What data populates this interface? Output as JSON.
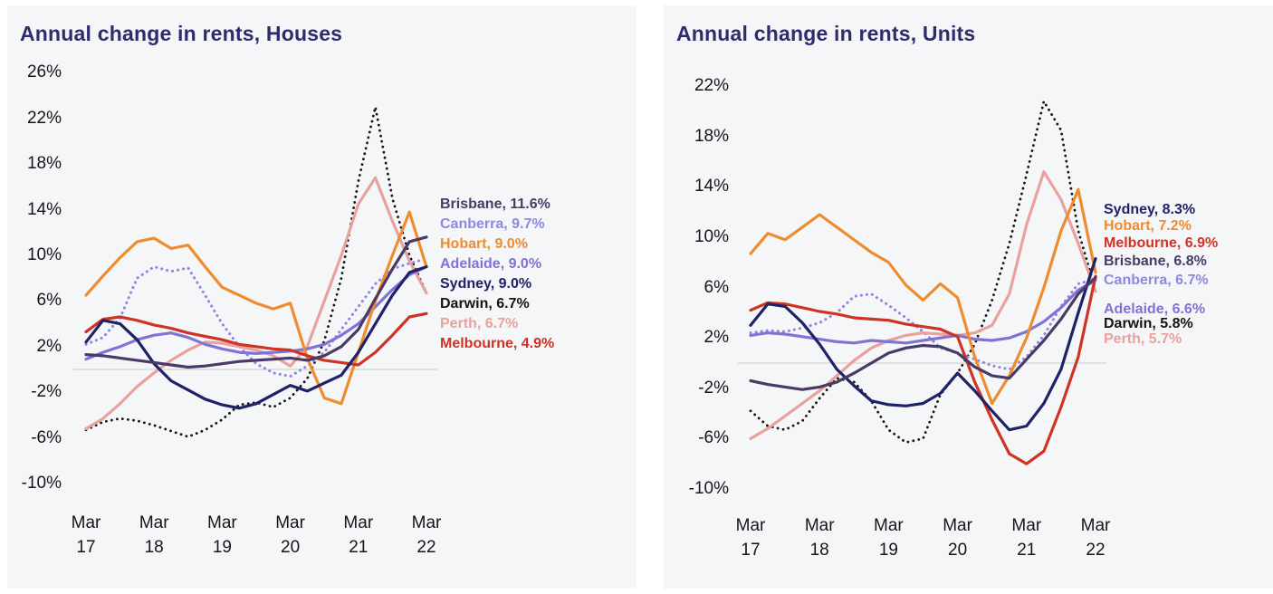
{
  "page": {
    "background_color": "#ffffff",
    "panel_background_color": "#f5f6f8",
    "title_color": "#312b6d",
    "axis_text_color": "#16161a",
    "zero_line_color": "#d8d8d8"
  },
  "city_colors": {
    "Sydney": "#1e2266",
    "Melbourne": "#ce3323",
    "Brisbane": "#4a3a66",
    "Adelaide": "#8173d6",
    "Canberra": "#9187e2",
    "Hobart": "#ee8c2e",
    "Perth": "#e9a19e",
    "Darwin": "#141414"
  },
  "chart_data": [
    {
      "type": "line",
      "title": "Annual change in rents, Houses",
      "ylabel": "",
      "xlabel": "",
      "y_axis": {
        "min": -10,
        "max": 26,
        "step": 4,
        "tick_suffix": "%",
        "ticks": [
          "26%",
          "22%",
          "18%",
          "14%",
          "10%",
          "6%",
          "2%",
          "-2%",
          "-6%",
          "-10%"
        ]
      },
      "x_ticks": [
        {
          "month": "Mar",
          "year": "17"
        },
        {
          "month": "Mar",
          "year": "18"
        },
        {
          "month": "Mar",
          "year": "19"
        },
        {
          "month": "Mar",
          "year": "20"
        },
        {
          "month": "Mar",
          "year": "21"
        },
        {
          "month": "Mar",
          "year": "22"
        }
      ],
      "x_quarters": [
        "Mar 17",
        "Jun 17",
        "Sep 17",
        "Dec 17",
        "Mar 18",
        "Jun 18",
        "Sep 18",
        "Dec 18",
        "Mar 19",
        "Jun 19",
        "Sep 19",
        "Dec 19",
        "Mar 20",
        "Jun 20",
        "Sep 20",
        "Dec 20",
        "Mar 21",
        "Jun 21",
        "Sep 21",
        "Dec 21",
        "Mar 22"
      ],
      "grid": false,
      "zero_line": true,
      "legend_position": "right-of-plot",
      "series": [
        {
          "name": "Brisbane",
          "label": "Brisbane, 11.6%",
          "final_value": 11.6,
          "style": "solid",
          "values": [
            1.3,
            1.2,
            1.0,
            0.8,
            0.6,
            0.4,
            0.2,
            0.3,
            0.5,
            0.7,
            0.8,
            0.9,
            1.0,
            0.8,
            1.2,
            2.0,
            3.5,
            6.2,
            8.8,
            11.2,
            11.6
          ]
        },
        {
          "name": "Canberra",
          "label": "Canberra, 9.7%",
          "final_value": 9.7,
          "style": "dotted",
          "values": [
            2.2,
            2.8,
            4.5,
            8.0,
            9.0,
            8.6,
            8.9,
            6.5,
            4.0,
            2.0,
            0.5,
            -0.3,
            -0.6,
            0.3,
            1.5,
            3.5,
            5.5,
            7.5,
            8.8,
            9.3,
            9.7
          ]
        },
        {
          "name": "Hobart",
          "label": "Hobart, 9.0%",
          "final_value": 9.0,
          "style": "solid",
          "values": [
            6.5,
            8.2,
            9.8,
            11.2,
            11.5,
            10.6,
            10.9,
            9.0,
            7.2,
            6.5,
            5.8,
            5.3,
            5.8,
            1.0,
            -2.5,
            -3.0,
            1.5,
            6.0,
            10.0,
            13.8,
            9.0
          ]
        },
        {
          "name": "Adelaide",
          "label": "Adelaide, 9.0%",
          "final_value": 9.0,
          "style": "solid",
          "values": [
            0.9,
            1.5,
            2.0,
            2.6,
            3.0,
            3.2,
            2.8,
            2.2,
            1.8,
            1.5,
            1.4,
            1.5,
            1.6,
            1.8,
            2.2,
            3.0,
            4.0,
            5.5,
            7.0,
            8.3,
            9.0
          ]
        },
        {
          "name": "Sydney",
          "label": "Sydney, 9.0%",
          "final_value": 9.0,
          "style": "solid",
          "values": [
            2.4,
            4.3,
            4.0,
            2.6,
            0.5,
            -1.0,
            -1.8,
            -2.6,
            -3.1,
            -3.4,
            -3.0,
            -2.2,
            -1.4,
            -1.9,
            -1.2,
            -0.5,
            1.5,
            4.0,
            6.5,
            8.5,
            9.0
          ]
        },
        {
          "name": "Darwin",
          "label": "Darwin, 6.7%",
          "final_value": 6.7,
          "style": "dotted",
          "values": [
            -5.3,
            -4.6,
            -4.3,
            -4.5,
            -4.9,
            -5.4,
            -5.9,
            -5.3,
            -4.4,
            -3.1,
            -2.9,
            -3.3,
            -2.5,
            -0.8,
            2.5,
            8.0,
            16.5,
            23.0,
            15.0,
            10.0,
            6.7
          ]
        },
        {
          "name": "Perth",
          "label": "Perth, 6.7%",
          "final_value": 6.7,
          "style": "solid",
          "values": [
            -5.2,
            -4.3,
            -3.0,
            -1.5,
            -0.3,
            0.8,
            1.7,
            2.4,
            2.3,
            2.0,
            1.7,
            1.2,
            0.3,
            2.0,
            6.0,
            10.0,
            14.5,
            16.8,
            13.0,
            9.5,
            6.7
          ]
        },
        {
          "name": "Melbourne",
          "label": "Melbourne, 4.9%",
          "final_value": 4.9,
          "style": "solid",
          "values": [
            3.3,
            4.4,
            4.6,
            4.3,
            3.9,
            3.6,
            3.2,
            2.9,
            2.6,
            2.2,
            2.0,
            1.8,
            1.7,
            1.2,
            0.8,
            0.6,
            0.4,
            1.5,
            3.0,
            4.6,
            4.9
          ]
        }
      ]
    },
    {
      "type": "line",
      "title": "Annual change in rents, Units",
      "ylabel": "",
      "xlabel": "",
      "y_axis": {
        "min": -10,
        "max": 22,
        "step": 4,
        "tick_suffix": "%",
        "ticks": [
          "22%",
          "18%",
          "14%",
          "10%",
          "6%",
          "2%",
          "-2%",
          "-6%",
          "-10%"
        ]
      },
      "x_ticks": [
        {
          "month": "Mar",
          "year": "17"
        },
        {
          "month": "Mar",
          "year": "18"
        },
        {
          "month": "Mar",
          "year": "19"
        },
        {
          "month": "Mar",
          "year": "20"
        },
        {
          "month": "Mar",
          "year": "21"
        },
        {
          "month": "Mar",
          "year": "22"
        }
      ],
      "x_quarters": [
        "Mar 17",
        "Jun 17",
        "Sep 17",
        "Dec 17",
        "Mar 18",
        "Jun 18",
        "Sep 18",
        "Dec 18",
        "Mar 19",
        "Jun 19",
        "Sep 19",
        "Dec 19",
        "Mar 20",
        "Jun 20",
        "Sep 20",
        "Dec 20",
        "Mar 21",
        "Jun 21",
        "Sep 21",
        "Dec 21",
        "Mar 22"
      ],
      "grid": false,
      "zero_line": true,
      "legend_position": "right-of-plot",
      "series": [
        {
          "name": "Sydney",
          "label": "Sydney, 8.3%",
          "final_value": 8.3,
          "style": "solid",
          "values": [
            3.0,
            4.7,
            4.5,
            3.2,
            1.5,
            -0.5,
            -1.8,
            -3.0,
            -3.3,
            -3.4,
            -3.2,
            -2.4,
            -0.8,
            -2.2,
            -3.8,
            -5.3,
            -5.0,
            -3.2,
            -0.5,
            4.0,
            8.3
          ]
        },
        {
          "name": "Hobart",
          "label": "Hobart, 7.2%",
          "final_value": 7.2,
          "style": "solid",
          "values": [
            8.7,
            10.3,
            9.8,
            10.8,
            11.8,
            10.8,
            9.8,
            8.8,
            8.0,
            6.2,
            5.0,
            6.3,
            5.2,
            0.5,
            -3.2,
            -1.0,
            2.0,
            6.0,
            10.5,
            13.8,
            7.2
          ]
        },
        {
          "name": "Melbourne",
          "label": "Melbourne, 6.9%",
          "final_value": 6.9,
          "style": "solid",
          "values": [
            4.2,
            4.8,
            4.7,
            4.4,
            4.1,
            3.9,
            3.6,
            3.5,
            3.4,
            3.1,
            2.9,
            2.7,
            2.1,
            -1.5,
            -4.5,
            -7.2,
            -8.0,
            -7.0,
            -3.5,
            0.5,
            6.9
          ]
        },
        {
          "name": "Brisbane",
          "label": "Brisbane, 6.8%",
          "final_value": 6.8,
          "style": "solid",
          "values": [
            -1.4,
            -1.7,
            -1.9,
            -2.1,
            -1.9,
            -1.5,
            -0.8,
            0.0,
            0.8,
            1.2,
            1.4,
            1.3,
            0.8,
            -0.3,
            -1.0,
            -1.2,
            0.3,
            1.8,
            3.5,
            5.5,
            6.8
          ]
        },
        {
          "name": "Canberra",
          "label": "Canberra, 6.7%",
          "final_value": 6.7,
          "style": "dotted",
          "values": [
            2.4,
            2.6,
            2.5,
            2.8,
            3.2,
            4.0,
            5.3,
            5.5,
            4.6,
            3.6,
            2.5,
            1.2,
            0.8,
            0.3,
            -0.2,
            -0.5,
            0.5,
            2.2,
            4.5,
            6.3,
            6.7
          ]
        },
        {
          "name": "Adelaide",
          "label": "Adelaide, 6.6%",
          "final_value": 6.6,
          "style": "solid",
          "values": [
            2.2,
            2.4,
            2.3,
            2.1,
            1.9,
            1.7,
            1.6,
            1.8,
            1.7,
            1.6,
            1.8,
            2.0,
            2.2,
            1.9,
            1.8,
            2.0,
            2.5,
            3.3,
            4.4,
            5.8,
            6.6
          ]
        },
        {
          "name": "Darwin",
          "label": "Darwin, 5.8%",
          "final_value": 5.8,
          "style": "dotted",
          "values": [
            -3.8,
            -5.0,
            -5.3,
            -4.6,
            -2.8,
            -1.2,
            -1.5,
            -3.0,
            -5.3,
            -6.3,
            -6.0,
            -2.5,
            -0.8,
            1.5,
            5.0,
            9.5,
            15.0,
            20.8,
            18.5,
            10.5,
            5.8
          ]
        },
        {
          "name": "Perth",
          "label": "Perth, 5.7%",
          "final_value": 5.7,
          "style": "solid",
          "values": [
            -6.0,
            -5.2,
            -4.2,
            -3.2,
            -2.2,
            -1.0,
            0.2,
            1.2,
            1.8,
            2.2,
            2.4,
            2.3,
            2.2,
            2.4,
            3.0,
            5.5,
            11.0,
            15.2,
            13.0,
            9.5,
            5.7
          ]
        }
      ]
    }
  ]
}
